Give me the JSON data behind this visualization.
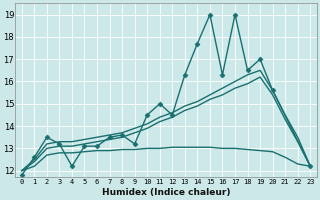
{
  "xlabel": "Humidex (Indice chaleur)",
  "bg_color": "#cce8e8",
  "line_color": "#1a7070",
  "grid_color": "#ffffff",
  "xlim": [
    -0.5,
    23.5
  ],
  "ylim": [
    11.7,
    19.5
  ],
  "yticks": [
    12,
    13,
    14,
    15,
    16,
    17,
    18,
    19
  ],
  "xticks": [
    0,
    1,
    2,
    3,
    4,
    5,
    6,
    7,
    8,
    9,
    10,
    11,
    12,
    13,
    14,
    15,
    16,
    17,
    18,
    19,
    20,
    21,
    22,
    23
  ],
  "series": [
    {
      "x": [
        0,
        1,
        2,
        3,
        4,
        5,
        6,
        7,
        8,
        9,
        10,
        11,
        12,
        13,
        14,
        15,
        16,
        17,
        18,
        19,
        20,
        23
      ],
      "y": [
        11.8,
        12.6,
        13.5,
        13.2,
        12.2,
        13.1,
        13.1,
        13.5,
        13.6,
        13.2,
        14.5,
        15.0,
        14.5,
        16.3,
        17.7,
        19.0,
        16.3,
        19.0,
        16.5,
        17.0,
        15.6,
        12.2
      ],
      "marker": "D",
      "markersize": 2.5,
      "linewidth": 1.0
    },
    {
      "x": [
        0,
        1,
        2,
        3,
        4,
        5,
        6,
        7,
        8,
        9,
        10,
        11,
        12,
        13,
        14,
        15,
        16,
        17,
        18,
        19,
        20,
        21,
        22,
        23
      ],
      "y": [
        12.0,
        12.5,
        13.2,
        13.3,
        13.3,
        13.4,
        13.5,
        13.6,
        13.7,
        13.9,
        14.1,
        14.4,
        14.6,
        14.9,
        15.1,
        15.4,
        15.7,
        16.0,
        16.3,
        16.5,
        15.6,
        14.5,
        13.5,
        12.2
      ],
      "marker": null,
      "linewidth": 1.0
    },
    {
      "x": [
        0,
        1,
        2,
        3,
        4,
        5,
        6,
        7,
        8,
        9,
        10,
        11,
        12,
        13,
        14,
        15,
        16,
        17,
        18,
        19,
        20,
        21,
        22,
        23
      ],
      "y": [
        12.0,
        12.4,
        13.0,
        13.1,
        13.1,
        13.2,
        13.3,
        13.4,
        13.5,
        13.7,
        13.9,
        14.2,
        14.4,
        14.7,
        14.9,
        15.2,
        15.4,
        15.7,
        15.9,
        16.2,
        15.4,
        14.3,
        13.3,
        12.2
      ],
      "marker": null,
      "linewidth": 1.0
    },
    {
      "x": [
        0,
        1,
        2,
        3,
        4,
        5,
        6,
        7,
        8,
        9,
        10,
        11,
        12,
        13,
        14,
        15,
        16,
        17,
        18,
        19,
        20,
        21,
        22,
        23
      ],
      "y": [
        12.0,
        12.2,
        12.7,
        12.8,
        12.8,
        12.85,
        12.9,
        12.9,
        12.95,
        12.95,
        13.0,
        13.0,
        13.05,
        13.05,
        13.05,
        13.05,
        13.0,
        13.0,
        12.95,
        12.9,
        12.85,
        12.6,
        12.3,
        12.2
      ],
      "marker": null,
      "linewidth": 1.0
    }
  ]
}
